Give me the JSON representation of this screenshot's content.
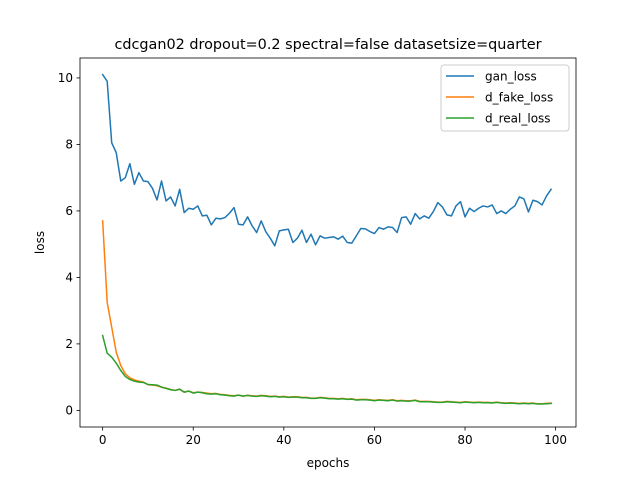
{
  "chart_data": {
    "type": "line",
    "title": "cdcgan02 dropout=0.2 spectral=false datasetsize=quarter",
    "xlabel": "epochs",
    "ylabel": "loss",
    "xlim": [
      -5,
      104.5
    ],
    "ylim": [
      -0.5,
      10.6
    ],
    "xticks": [
      0,
      20,
      40,
      60,
      80,
      100
    ],
    "yticks": [
      0,
      2,
      4,
      6,
      8,
      10
    ],
    "grid": false,
    "legend_position": "top-right",
    "x": [
      0,
      1,
      2,
      3,
      4,
      5,
      6,
      7,
      8,
      9,
      10,
      11,
      12,
      13,
      14,
      15,
      16,
      17,
      18,
      19,
      20,
      21,
      22,
      23,
      24,
      25,
      26,
      27,
      28,
      29,
      30,
      31,
      32,
      33,
      34,
      35,
      36,
      37,
      38,
      39,
      40,
      41,
      42,
      43,
      44,
      45,
      46,
      47,
      48,
      49,
      50,
      51,
      52,
      53,
      54,
      55,
      56,
      57,
      58,
      59,
      60,
      61,
      62,
      63,
      64,
      65,
      66,
      67,
      68,
      69,
      70,
      71,
      72,
      73,
      74,
      75,
      76,
      77,
      78,
      79,
      80,
      81,
      82,
      83,
      84,
      85,
      86,
      87,
      88,
      89,
      90,
      91,
      92,
      93,
      94,
      95,
      96,
      97,
      98,
      99
    ],
    "series": [
      {
        "name": "gan_loss",
        "color": "#1f77b4",
        "values": [
          10.1,
          9.9,
          8.05,
          7.75,
          6.9,
          7.0,
          7.42,
          6.8,
          7.15,
          6.9,
          6.88,
          6.68,
          6.33,
          6.9,
          6.3,
          6.42,
          6.15,
          6.65,
          5.95,
          6.08,
          6.05,
          6.15,
          5.85,
          5.87,
          5.58,
          5.78,
          5.76,
          5.8,
          5.93,
          6.1,
          5.6,
          5.58,
          5.82,
          5.55,
          5.35,
          5.7,
          5.38,
          5.18,
          4.95,
          5.4,
          5.43,
          5.45,
          5.05,
          5.18,
          5.42,
          5.05,
          5.3,
          4.98,
          5.25,
          5.18,
          5.2,
          5.22,
          5.15,
          5.24,
          5.05,
          5.03,
          5.25,
          5.47,
          5.46,
          5.38,
          5.32,
          5.5,
          5.45,
          5.52,
          5.5,
          5.35,
          5.8,
          5.82,
          5.6,
          5.92,
          5.76,
          5.85,
          5.78,
          5.98,
          6.25,
          6.12,
          5.88,
          5.85,
          6.15,
          6.28,
          5.82,
          6.08,
          5.98,
          6.08,
          6.15,
          6.12,
          6.18,
          5.92,
          6.0,
          5.92,
          6.05,
          6.15,
          6.42,
          6.36,
          5.97,
          6.32,
          6.28,
          6.18,
          6.45,
          6.65
        ]
      },
      {
        "name": "d_fake_loss",
        "color": "#ff7f0e",
        "values": [
          5.7,
          3.25,
          2.5,
          1.75,
          1.35,
          1.1,
          0.98,
          0.92,
          0.88,
          0.85,
          0.77,
          0.76,
          0.74,
          0.7,
          0.67,
          0.63,
          0.6,
          0.63,
          0.55,
          0.58,
          0.53,
          0.55,
          0.54,
          0.52,
          0.5,
          0.51,
          0.48,
          0.47,
          0.45,
          0.44,
          0.46,
          0.43,
          0.45,
          0.44,
          0.43,
          0.45,
          0.44,
          0.42,
          0.43,
          0.41,
          0.42,
          0.4,
          0.41,
          0.41,
          0.39,
          0.39,
          0.37,
          0.37,
          0.39,
          0.38,
          0.36,
          0.36,
          0.35,
          0.36,
          0.34,
          0.35,
          0.32,
          0.33,
          0.33,
          0.32,
          0.3,
          0.32,
          0.31,
          0.3,
          0.32,
          0.29,
          0.3,
          0.29,
          0.29,
          0.31,
          0.27,
          0.27,
          0.27,
          0.26,
          0.25,
          0.25,
          0.27,
          0.26,
          0.25,
          0.24,
          0.26,
          0.25,
          0.24,
          0.25,
          0.24,
          0.24,
          0.23,
          0.25,
          0.23,
          0.22,
          0.23,
          0.22,
          0.21,
          0.22,
          0.21,
          0.22,
          0.2,
          0.2,
          0.21,
          0.22
        ]
      },
      {
        "name": "d_real_loss",
        "color": "#2ca02c",
        "values": [
          2.25,
          1.72,
          1.6,
          1.42,
          1.2,
          1.02,
          0.93,
          0.88,
          0.85,
          0.84,
          0.78,
          0.77,
          0.76,
          0.7,
          0.66,
          0.62,
          0.6,
          0.64,
          0.55,
          0.58,
          0.52,
          0.55,
          0.53,
          0.5,
          0.49,
          0.5,
          0.47,
          0.46,
          0.44,
          0.43,
          0.46,
          0.43,
          0.45,
          0.43,
          0.42,
          0.44,
          0.43,
          0.41,
          0.42,
          0.4,
          0.41,
          0.39,
          0.4,
          0.4,
          0.38,
          0.38,
          0.36,
          0.36,
          0.38,
          0.37,
          0.35,
          0.35,
          0.34,
          0.35,
          0.33,
          0.34,
          0.31,
          0.32,
          0.32,
          0.31,
          0.29,
          0.31,
          0.3,
          0.29,
          0.31,
          0.28,
          0.29,
          0.28,
          0.28,
          0.3,
          0.26,
          0.26,
          0.26,
          0.25,
          0.24,
          0.24,
          0.26,
          0.25,
          0.24,
          0.23,
          0.25,
          0.24,
          0.23,
          0.24,
          0.23,
          0.23,
          0.22,
          0.24,
          0.22,
          0.21,
          0.22,
          0.21,
          0.2,
          0.21,
          0.2,
          0.21,
          0.19,
          0.19,
          0.2,
          0.21
        ]
      }
    ]
  }
}
